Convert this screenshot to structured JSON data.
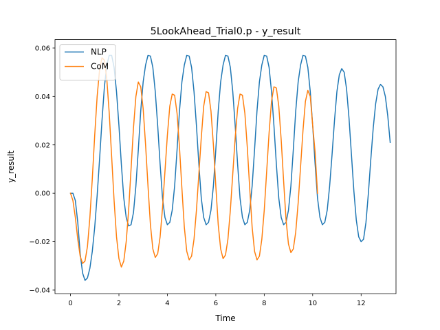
{
  "chart_data": {
    "type": "line",
    "title": "5LookAhead_Trial0.p - y_result",
    "xlabel": "Time",
    "ylabel": "y_result",
    "xlim": [
      -0.64,
      13.44
    ],
    "ylim": [
      -0.0415,
      0.0635
    ],
    "xticks": [
      0,
      2,
      4,
      6,
      8,
      10,
      12
    ],
    "xtick_labels": [
      "0",
      "2",
      "4",
      "6",
      "8",
      "10",
      "12"
    ],
    "yticks": [
      -0.04,
      -0.02,
      0.0,
      0.02,
      0.04,
      0.06
    ],
    "ytick_labels": [
      "−0.04",
      "−0.02",
      "0.00",
      "0.02",
      "0.04",
      "0.06"
    ],
    "grid": false,
    "legend_position": "top-left",
    "series": [
      {
        "name": "NLP",
        "color": "#1f77b4",
        "points": [
          [
            0.0,
            0.0
          ],
          [
            0.1,
            0.0
          ],
          [
            0.2,
            -0.003
          ],
          [
            0.3,
            -0.012
          ],
          [
            0.4,
            -0.025
          ],
          [
            0.5,
            -0.033
          ],
          [
            0.6,
            -0.036
          ],
          [
            0.7,
            -0.035
          ],
          [
            0.8,
            -0.031
          ],
          [
            0.9,
            -0.024
          ],
          [
            1.0,
            -0.014
          ],
          [
            1.1,
            -0.001
          ],
          [
            1.2,
            0.014
          ],
          [
            1.3,
            0.03
          ],
          [
            1.4,
            0.044
          ],
          [
            1.5,
            0.053
          ],
          [
            1.6,
            0.057
          ],
          [
            1.7,
            0.057
          ],
          [
            1.8,
            0.052
          ],
          [
            1.9,
            0.042
          ],
          [
            2.0,
            0.028
          ],
          [
            2.1,
            0.012
          ],
          [
            2.2,
            -0.002
          ],
          [
            2.3,
            -0.01
          ],
          [
            2.4,
            -0.0135
          ],
          [
            2.5,
            -0.013
          ],
          [
            2.6,
            -0.008
          ],
          [
            2.7,
            0.003
          ],
          [
            2.8,
            0.018
          ],
          [
            2.9,
            0.034
          ],
          [
            3.0,
            0.046
          ],
          [
            3.1,
            0.053
          ],
          [
            3.2,
            0.057
          ],
          [
            3.3,
            0.0567
          ],
          [
            3.4,
            0.052
          ],
          [
            3.5,
            0.042
          ],
          [
            3.6,
            0.028
          ],
          [
            3.7,
            0.012
          ],
          [
            3.8,
            -0.002
          ],
          [
            3.9,
            -0.01
          ],
          [
            4.0,
            -0.013
          ],
          [
            4.1,
            -0.012
          ],
          [
            4.2,
            -0.007
          ],
          [
            4.3,
            0.003
          ],
          [
            4.4,
            0.018
          ],
          [
            4.5,
            0.034
          ],
          [
            4.6,
            0.046
          ],
          [
            4.7,
            0.053
          ],
          [
            4.8,
            0.057
          ],
          [
            4.9,
            0.0567
          ],
          [
            5.0,
            0.052
          ],
          [
            5.1,
            0.042
          ],
          [
            5.2,
            0.028
          ],
          [
            5.3,
            0.012
          ],
          [
            5.4,
            -0.002
          ],
          [
            5.5,
            -0.01
          ],
          [
            5.6,
            -0.013
          ],
          [
            5.7,
            -0.012
          ],
          [
            5.8,
            -0.007
          ],
          [
            5.9,
            0.003
          ],
          [
            6.0,
            0.018
          ],
          [
            6.1,
            0.034
          ],
          [
            6.2,
            0.046
          ],
          [
            6.3,
            0.053
          ],
          [
            6.4,
            0.057
          ],
          [
            6.5,
            0.0567
          ],
          [
            6.6,
            0.052
          ],
          [
            6.7,
            0.042
          ],
          [
            6.8,
            0.028
          ],
          [
            6.9,
            0.012
          ],
          [
            7.0,
            -0.002
          ],
          [
            7.1,
            -0.01
          ],
          [
            7.2,
            -0.013
          ],
          [
            7.3,
            -0.012
          ],
          [
            7.4,
            -0.007
          ],
          [
            7.5,
            0.003
          ],
          [
            7.6,
            0.018
          ],
          [
            7.7,
            0.034
          ],
          [
            7.8,
            0.046
          ],
          [
            7.9,
            0.053
          ],
          [
            8.0,
            0.057
          ],
          [
            8.1,
            0.0567
          ],
          [
            8.2,
            0.052
          ],
          [
            8.3,
            0.042
          ],
          [
            8.4,
            0.028
          ],
          [
            8.5,
            0.012
          ],
          [
            8.6,
            -0.002
          ],
          [
            8.7,
            -0.01
          ],
          [
            8.8,
            -0.013
          ],
          [
            8.9,
            -0.012
          ],
          [
            9.0,
            -0.007
          ],
          [
            9.1,
            0.003
          ],
          [
            9.2,
            0.018
          ],
          [
            9.3,
            0.034
          ],
          [
            9.4,
            0.046
          ],
          [
            9.5,
            0.053
          ],
          [
            9.6,
            0.057
          ],
          [
            9.7,
            0.0567
          ],
          [
            9.8,
            0.052
          ],
          [
            9.9,
            0.042
          ],
          [
            10.0,
            0.028
          ],
          [
            10.1,
            0.012
          ],
          [
            10.2,
            -0.002
          ],
          [
            10.3,
            -0.01
          ],
          [
            10.4,
            -0.013
          ],
          [
            10.5,
            -0.012
          ],
          [
            10.6,
            -0.007
          ],
          [
            10.7,
            0.003
          ],
          [
            10.8,
            0.016
          ],
          [
            10.9,
            0.03
          ],
          [
            11.0,
            0.042
          ],
          [
            11.1,
            0.049
          ],
          [
            11.2,
            0.0515
          ],
          [
            11.3,
            0.05
          ],
          [
            11.4,
            0.043
          ],
          [
            11.5,
            0.031
          ],
          [
            11.6,
            0.016
          ],
          [
            11.7,
            0.001
          ],
          [
            11.8,
            -0.011
          ],
          [
            11.9,
            -0.018
          ],
          [
            12.0,
            -0.02
          ],
          [
            12.1,
            -0.019
          ],
          [
            12.2,
            -0.012
          ],
          [
            12.3,
            0.0
          ],
          [
            12.4,
            0.014
          ],
          [
            12.5,
            0.027
          ],
          [
            12.6,
            0.037
          ],
          [
            12.7,
            0.043
          ],
          [
            12.8,
            0.045
          ],
          [
            12.9,
            0.044
          ],
          [
            13.0,
            0.04
          ],
          [
            13.1,
            0.032
          ],
          [
            13.2,
            0.021
          ]
        ]
      },
      {
        "name": "CoM",
        "color": "#ff7f0e",
        "points": [
          [
            0.0,
            0.0
          ],
          [
            0.1,
            -0.003
          ],
          [
            0.2,
            -0.01
          ],
          [
            0.3,
            -0.019
          ],
          [
            0.4,
            -0.026
          ],
          [
            0.5,
            -0.029
          ],
          [
            0.6,
            -0.028
          ],
          [
            0.7,
            -0.022
          ],
          [
            0.8,
            -0.01
          ],
          [
            0.9,
            0.006
          ],
          [
            1.0,
            0.024
          ],
          [
            1.1,
            0.04
          ],
          [
            1.2,
            0.051
          ],
          [
            1.3,
            0.056
          ],
          [
            1.4,
            0.055
          ],
          [
            1.5,
            0.047
          ],
          [
            1.6,
            0.033
          ],
          [
            1.7,
            0.015
          ],
          [
            1.8,
            -0.003
          ],
          [
            1.9,
            -0.018
          ],
          [
            2.0,
            -0.027
          ],
          [
            2.1,
            -0.0305
          ],
          [
            2.2,
            -0.028
          ],
          [
            2.3,
            -0.02
          ],
          [
            2.4,
            -0.007
          ],
          [
            2.5,
            0.01
          ],
          [
            2.6,
            0.027
          ],
          [
            2.7,
            0.04
          ],
          [
            2.8,
            0.046
          ],
          [
            2.9,
            0.044
          ],
          [
            3.0,
            0.035
          ],
          [
            3.1,
            0.02
          ],
          [
            3.2,
            0.003
          ],
          [
            3.3,
            -0.013
          ],
          [
            3.4,
            -0.023
          ],
          [
            3.5,
            -0.0265
          ],
          [
            3.6,
            -0.025
          ],
          [
            3.7,
            -0.018
          ],
          [
            3.8,
            -0.006
          ],
          [
            3.9,
            0.009
          ],
          [
            4.0,
            0.024
          ],
          [
            4.1,
            0.036
          ],
          [
            4.2,
            0.041
          ],
          [
            4.3,
            0.0405
          ],
          [
            4.4,
            0.033
          ],
          [
            4.5,
            0.019
          ],
          [
            4.6,
            0.002
          ],
          [
            4.7,
            -0.014
          ],
          [
            4.8,
            -0.024
          ],
          [
            4.9,
            -0.0275
          ],
          [
            5.0,
            -0.026
          ],
          [
            5.1,
            -0.019
          ],
          [
            5.2,
            -0.007
          ],
          [
            5.3,
            0.008
          ],
          [
            5.4,
            0.023
          ],
          [
            5.5,
            0.036
          ],
          [
            5.6,
            0.042
          ],
          [
            5.7,
            0.0415
          ],
          [
            5.8,
            0.034
          ],
          [
            5.9,
            0.02
          ],
          [
            6.0,
            0.003
          ],
          [
            6.1,
            -0.013
          ],
          [
            6.2,
            -0.023
          ],
          [
            6.3,
            -0.027
          ],
          [
            6.4,
            -0.0255
          ],
          [
            6.5,
            -0.019
          ],
          [
            6.6,
            -0.007
          ],
          [
            6.7,
            0.008
          ],
          [
            6.8,
            0.023
          ],
          [
            6.9,
            0.035
          ],
          [
            7.0,
            0.041
          ],
          [
            7.1,
            0.0405
          ],
          [
            7.2,
            0.033
          ],
          [
            7.3,
            0.019
          ],
          [
            7.4,
            0.002
          ],
          [
            7.5,
            -0.014
          ],
          [
            7.6,
            -0.024
          ],
          [
            7.7,
            -0.0275
          ],
          [
            7.8,
            -0.026
          ],
          [
            7.9,
            -0.019
          ],
          [
            8.0,
            -0.007
          ],
          [
            8.1,
            0.009
          ],
          [
            8.2,
            0.025
          ],
          [
            8.3,
            0.038
          ],
          [
            8.4,
            0.044
          ],
          [
            8.5,
            0.0435
          ],
          [
            8.6,
            0.036
          ],
          [
            8.7,
            0.022
          ],
          [
            8.8,
            0.005
          ],
          [
            8.9,
            -0.011
          ],
          [
            9.0,
            -0.021
          ],
          [
            9.1,
            -0.0245
          ],
          [
            9.2,
            -0.023
          ],
          [
            9.3,
            -0.016
          ],
          [
            9.4,
            -0.004
          ],
          [
            9.5,
            0.011
          ],
          [
            9.6,
            0.026
          ],
          [
            9.7,
            0.038
          ],
          [
            9.8,
            0.0425
          ],
          [
            9.9,
            0.04
          ],
          [
            10.0,
            0.028
          ],
          [
            10.1,
            0.017
          ],
          [
            10.2,
            0.0
          ]
        ]
      }
    ]
  }
}
